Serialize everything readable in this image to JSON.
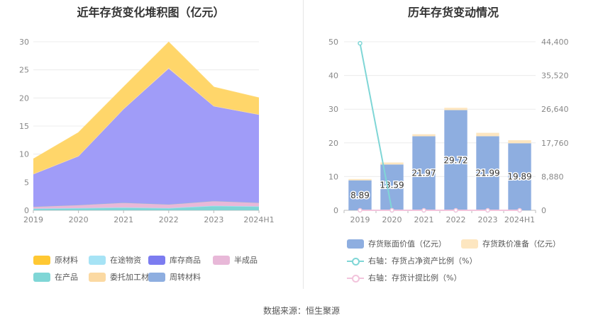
{
  "source_label": "数据来源：恒生聚源",
  "chart_data": [
    {
      "type": "area",
      "stacked": true,
      "title": "近年存货变化堆积图（亿元）",
      "categories": [
        "2019",
        "2020",
        "2021",
        "2022",
        "2023",
        "2024H1"
      ],
      "ylim": [
        0,
        30
      ],
      "yticks": [
        "0",
        "5",
        "10",
        "15",
        "20",
        "25",
        "30"
      ],
      "grid": true,
      "legend_position": "bottom",
      "series": [
        {
          "name": "在产品",
          "color": "#7fd6d6",
          "values": [
            0.3,
            0.4,
            0.5,
            0.4,
            0.8,
            0.7
          ]
        },
        {
          "name": "在途物资",
          "color": "#a6e3f5",
          "values": [
            0.0,
            0.0,
            0.0,
            0.0,
            0.0,
            0.0
          ]
        },
        {
          "name": "半成品",
          "color": "#e8b8d8",
          "values": [
            0.4,
            0.6,
            0.9,
            0.7,
            0.9,
            0.7
          ]
        },
        {
          "name": "周转材料",
          "color": "#8eaee0",
          "values": [
            0.0,
            0.0,
            0.0,
            0.0,
            0.0,
            0.0
          ]
        },
        {
          "name": "库存商品",
          "color": "#a09cf8",
          "values": [
            5.7,
            8.6,
            16.6,
            24.1,
            16.8,
            15.6
          ]
        },
        {
          "name": "委托加工材料",
          "color": "#fbd9a2",
          "values": [
            0.1,
            0.1,
            0.1,
            0.2,
            0.1,
            0.1
          ]
        },
        {
          "name": "原材料",
          "color": "#ffd66a",
          "values": [
            2.6,
            4.1,
            3.8,
            4.5,
            3.3,
            2.9
          ]
        }
      ],
      "legend": [
        {
          "name": "原材料",
          "color": "#ffc833"
        },
        {
          "name": "在途物资",
          "color": "#a6e3f5"
        },
        {
          "name": "库存商品",
          "color": "#7c7cf0"
        },
        {
          "name": "半成品",
          "color": "#e8b8d8"
        },
        {
          "name": "在产品",
          "color": "#7fd6d6"
        },
        {
          "name": "委托加工材料",
          "color": "#fbd9a2"
        },
        {
          "name": "周转材料",
          "color": "#8eaee0"
        }
      ]
    },
    {
      "type": "bar",
      "title": "历年存货变动情况",
      "categories": [
        "2019",
        "2020",
        "2021",
        "2022",
        "2023",
        "2024H1"
      ],
      "ylim": [
        0,
        50
      ],
      "yticks": [
        "0",
        "10",
        "20",
        "30",
        "40",
        "50"
      ],
      "y2lim": [
        0,
        44400
      ],
      "y2ticks": [
        "0",
        "8,880",
        "17,760",
        "26,640",
        "35,520",
        "44,400"
      ],
      "grid": true,
      "legend_position": "bottom",
      "series": [
        {
          "name": "存货账面价值（亿元）",
          "kind": "bar",
          "color": "#8eaee0",
          "values": [
            8.89,
            13.59,
            21.97,
            29.72,
            21.99,
            19.89
          ],
          "labels": [
            "8.89",
            "13.59",
            "21.97",
            "29.72",
            "21.99",
            "19.89"
          ]
        },
        {
          "name": "存货跌价准备（亿元）",
          "kind": "bar",
          "color": "#fde6c0",
          "values": [
            0.4,
            0.6,
            0.6,
            0.7,
            1.0,
            0.9
          ]
        },
        {
          "name": "右轴：存货占净资产比例（%）",
          "kind": "line",
          "axis": "right",
          "color": "#7fd6d6",
          "values": [
            44000,
            0,
            0,
            0,
            0,
            0
          ]
        },
        {
          "name": "右轴：存货计提比例（%）",
          "kind": "line",
          "axis": "right",
          "color": "#f2c4dc",
          "values": [
            0,
            0,
            0,
            0,
            0,
            0
          ]
        }
      ]
    }
  ]
}
